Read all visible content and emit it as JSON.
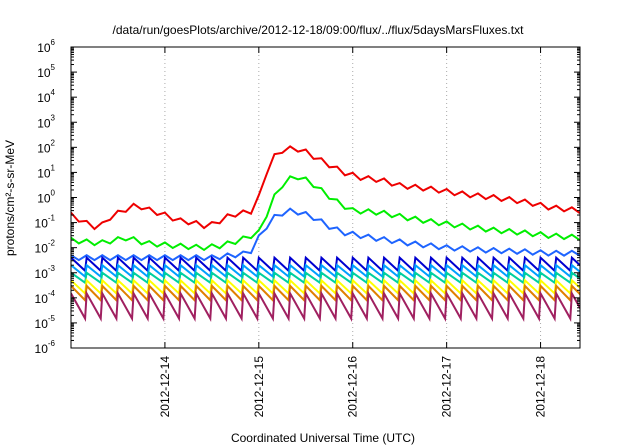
{
  "chart_data": {
    "type": "line",
    "title": "/data/run/goesPlots/archive/2012-12-18/09:00/flux/../flux/5daysMarsFluxes.txt",
    "xlabel": "Coordinated Universal Time (UTC)",
    "ylabel": "protons/cm²-s-sr-MeV",
    "y_scale": "log",
    "ylim_exponent": [
      -6,
      6
    ],
    "y_ticks": [
      {
        "base": "10",
        "exp": "6"
      },
      {
        "base": "10",
        "exp": "5"
      },
      {
        "base": "10",
        "exp": "4"
      },
      {
        "base": "10",
        "exp": "3"
      },
      {
        "base": "10",
        "exp": "2"
      },
      {
        "base": "10",
        "exp": "1"
      },
      {
        "base": "10",
        "exp": "0"
      },
      {
        "base": "10",
        "exp": "-1"
      },
      {
        "base": "10",
        "exp": "-2"
      },
      {
        "base": "10",
        "exp": "-3"
      },
      {
        "base": "10",
        "exp": "-4"
      },
      {
        "base": "10",
        "exp": "-5"
      },
      {
        "base": "10",
        "exp": "-6"
      }
    ],
    "x_ticks": [
      "2012-12-14",
      "2012-12-15",
      "2012-12-16",
      "2012-12-17",
      "2012-12-18"
    ],
    "xlim_days": [
      13.0,
      18.42
    ],
    "grid": "vertical dotted at day ticks",
    "series": [
      {
        "color": "#ee0000",
        "kind": "red",
        "points": [
          [
            13.0,
            0.2
          ],
          [
            13.2,
            0.08
          ],
          [
            13.3,
            0.06
          ],
          [
            13.4,
            0.15
          ],
          [
            13.55,
            0.3
          ],
          [
            13.7,
            0.5
          ],
          [
            13.85,
            0.3
          ],
          [
            14.0,
            0.2
          ],
          [
            14.15,
            0.12
          ],
          [
            14.3,
            0.1
          ],
          [
            14.45,
            0.07
          ],
          [
            14.55,
            0.1
          ],
          [
            14.7,
            0.2
          ],
          [
            14.85,
            0.25
          ],
          [
            14.95,
            0.3
          ],
          [
            15.0,
            1.0
          ],
          [
            15.05,
            3.0
          ],
          [
            15.1,
            20
          ],
          [
            15.18,
            50
          ],
          [
            15.26,
            80
          ],
          [
            15.36,
            90
          ],
          [
            15.46,
            80
          ],
          [
            15.6,
            40
          ],
          [
            15.75,
            20
          ],
          [
            15.9,
            10
          ],
          [
            16.1,
            6
          ],
          [
            16.3,
            5
          ],
          [
            16.5,
            3
          ],
          [
            16.7,
            2.5
          ],
          [
            16.9,
            2
          ],
          [
            17.1,
            1.5
          ],
          [
            17.3,
            1.2
          ],
          [
            17.5,
            1.0
          ],
          [
            17.7,
            0.8
          ],
          [
            17.9,
            0.6
          ],
          [
            18.1,
            0.4
          ],
          [
            18.25,
            0.35
          ],
          [
            18.42,
            0.3
          ]
        ]
      },
      {
        "color": "#00ee00",
        "kind": "green",
        "points": [
          [
            13.0,
            0.02
          ],
          [
            13.3,
            0.015
          ],
          [
            13.6,
            0.025
          ],
          [
            13.8,
            0.015
          ],
          [
            14.1,
            0.012
          ],
          [
            14.4,
            0.01
          ],
          [
            14.6,
            0.012
          ],
          [
            14.8,
            0.02
          ],
          [
            15.0,
            0.04
          ],
          [
            15.1,
            0.3
          ],
          [
            15.2,
            2
          ],
          [
            15.3,
            5
          ],
          [
            15.4,
            7
          ],
          [
            15.5,
            5
          ],
          [
            15.6,
            3
          ],
          [
            15.7,
            1.5
          ],
          [
            15.85,
            0.6
          ],
          [
            16.0,
            0.3
          ],
          [
            16.3,
            0.25
          ],
          [
            16.6,
            0.15
          ],
          [
            16.9,
            0.1
          ],
          [
            17.2,
            0.07
          ],
          [
            17.5,
            0.05
          ],
          [
            17.8,
            0.04
          ],
          [
            18.1,
            0.03
          ],
          [
            18.42,
            0.025
          ]
        ]
      },
      {
        "color": "#1e64ff",
        "kind": "azure",
        "points": [
          [
            13.0,
            0.004
          ],
          [
            13.5,
            0.004
          ],
          [
            14.0,
            0.004
          ],
          [
            14.5,
            0.004
          ],
          [
            14.9,
            0.006
          ],
          [
            15.05,
            0.05
          ],
          [
            15.15,
            0.15
          ],
          [
            15.3,
            0.3
          ],
          [
            15.45,
            0.25
          ],
          [
            15.6,
            0.15
          ],
          [
            15.75,
            0.07
          ],
          [
            15.9,
            0.04
          ],
          [
            16.2,
            0.025
          ],
          [
            16.6,
            0.015
          ],
          [
            17.0,
            0.01
          ],
          [
            17.4,
            0.008
          ],
          [
            17.8,
            0.007
          ],
          [
            18.1,
            0.006
          ],
          [
            18.42,
            0.006
          ]
        ]
      },
      {
        "color": "#0000d0",
        "kind": "saw",
        "low": 0.0012,
        "high": 0.004
      },
      {
        "color": "#00a0ff",
        "kind": "saw",
        "low": 0.0007,
        "high": 0.002
      },
      {
        "color": "#00d0a0",
        "kind": "saw",
        "low": 0.0004,
        "high": 0.001
      },
      {
        "color": "#ffff00",
        "kind": "saw",
        "low": 0.00015,
        "high": 0.0005
      },
      {
        "color": "#e08000",
        "kind": "saw",
        "low": 8e-05,
        "high": 0.0003
      },
      {
        "color": "#a02060",
        "kind": "saw",
        "low": 1.5e-05,
        "high": 0.00015
      }
    ]
  }
}
